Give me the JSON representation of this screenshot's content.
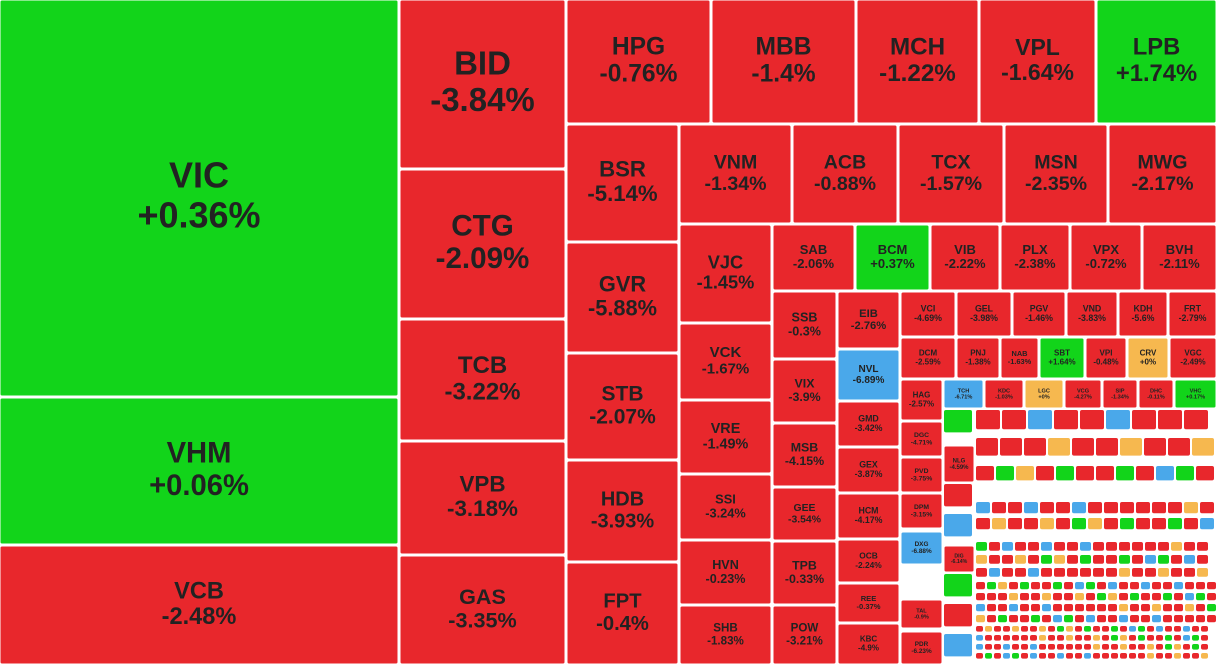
{
  "chart_data": {
    "type": "treemap",
    "categories": [
      "VIC",
      "VHM",
      "VCB",
      "BID",
      "CTG",
      "TCB",
      "VPB",
      "GAS",
      "HPG",
      "MBB",
      "MCH",
      "VPL",
      "LPB",
      "BSR",
      "GVR",
      "STB",
      "HDB",
      "FPT",
      "VNM",
      "ACB",
      "TCX",
      "MSN",
      "MWG",
      "VJC",
      "VCK",
      "VRE",
      "SSI",
      "HVN",
      "SHB",
      "SAB",
      "BCM",
      "VIB",
      "PLX",
      "VPX",
      "BVH",
      "SSB",
      "VIX",
      "MSB",
      "GEE",
      "TPB",
      "POW",
      "EIB",
      "NVL",
      "GMD",
      "GEX",
      "HCM",
      "OCB",
      "REE",
      "KBC",
      "VCI",
      "GEL",
      "PGV",
      "VND",
      "KDH",
      "FRT",
      "DCM",
      "PNJ",
      "NAB",
      "SBT",
      "VPI",
      "CRV",
      "VGC",
      "HAG",
      "TCH",
      "KDC",
      "LGC",
      "VCG",
      "SIP",
      "DHC",
      "VHC",
      "DGC",
      "PVD",
      "DPM",
      "DXG",
      "TAL",
      "PDR",
      "NLG",
      "DIG"
    ],
    "values": [
      0.36,
      0.06,
      -2.48,
      -3.84,
      -2.09,
      -3.22,
      -3.18,
      -3.35,
      -0.76,
      -1.4,
      -1.22,
      -1.64,
      1.74,
      -5.14,
      -5.88,
      -2.07,
      -3.93,
      -0.4,
      -1.34,
      -0.88,
      -1.57,
      -2.35,
      -2.17,
      -1.45,
      -1.67,
      -1.49,
      -3.24,
      -0.23,
      -1.83,
      -2.06,
      0.37,
      -2.22,
      -2.38,
      -0.72,
      -2.11,
      -0.3,
      -3.9,
      -4.15,
      -3.54,
      -0.33,
      -3.21,
      -2.76,
      -6.89,
      -3.42,
      -3.87,
      -4.17,
      -2.24,
      -0.37,
      -4.9,
      -4.69,
      -3.98,
      -1.46,
      -3.83,
      -5.6,
      -2.79,
      -2.59,
      -1.38,
      -1.63,
      1.64,
      -0.48,
      0,
      -2.49,
      -2.57,
      -6.71,
      -1.03,
      0,
      -4.27,
      -1.34,
      -0.11,
      0.17,
      -4.71,
      -3.75,
      -3.15,
      -6.88,
      -0.9,
      -6.23,
      -4.59,
      -6.14
    ],
    "value_labels": [
      "+0.36%",
      "+0.06%",
      "-2.48%",
      "-3.84%",
      "-2.09%",
      "-3.22%",
      "-3.18%",
      "-3.35%",
      "-0.76%",
      "-1.4%",
      "-1.22%",
      "-1.64%",
      "+1.74%",
      "-5.14%",
      "-5.88%",
      "-2.07%",
      "-3.93%",
      "-0.4%",
      "-1.34%",
      "-0.88%",
      "-1.57%",
      "-2.35%",
      "-2.17%",
      "-1.45%",
      "-1.67%",
      "-1.49%",
      "-3.24%",
      "-0.23%",
      "-1.83%",
      "-2.06%",
      "+0.37%",
      "-2.22%",
      "-2.38%",
      "-0.72%",
      "-2.11%",
      "-0.3%",
      "-3.9%",
      "-4.15%",
      "-3.54%",
      "-0.33%",
      "-3.21%",
      "-2.76%",
      "-6.89%",
      "-3.42%",
      "-3.87%",
      "-4.17%",
      "-2.24%",
      "-0.37%",
      "-4.9%",
      "-4.69%",
      "-3.98%",
      "-1.46%",
      "-3.83%",
      "-5.6%",
      "-2.79%",
      "-2.59%",
      "-1.38%",
      "-1.63%",
      "+1.64%",
      "-0.48%",
      "+0%",
      "-2.49%",
      "-2.57%",
      "-6.71%",
      "-1.03%",
      "+0%",
      "-4.27%",
      "-1.34%",
      "-0.11%",
      "+0.17%",
      "-4.71%",
      "-3.75%",
      "-3.15%",
      "-6.88%",
      "-0.9%",
      "-6.23%",
      "-4.59%",
      "-6.14%"
    ],
    "colors": {
      "up": "#12d41a",
      "down": "#e8272c",
      "floor": "#4aa8ea",
      "flat": "#f6b84f"
    }
  }
}
